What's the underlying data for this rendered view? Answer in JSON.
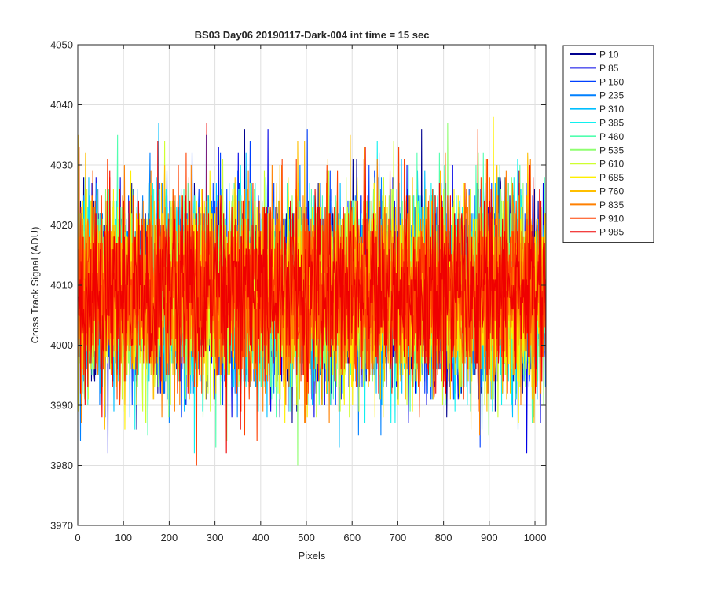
{
  "figure_background": "#ffffff",
  "chart_data": {
    "type": "line",
    "title": "BS03 Day06 20190117-Dark-004 int time = 15 sec",
    "xlabel": "Pixels",
    "ylabel": "Cross Track Signal (ADU)",
    "xlim": [
      0,
      1024
    ],
    "ylim": [
      3970,
      4050
    ],
    "xticks": [
      0,
      100,
      200,
      300,
      400,
      500,
      600,
      700,
      800,
      900,
      1000
    ],
    "yticks": [
      3970,
      3980,
      3990,
      4000,
      4010,
      4020,
      4030,
      4040,
      4050
    ],
    "grid": true,
    "legend_location": "outside-top-right",
    "x": {
      "start": 1,
      "end": 1024,
      "step": 1
    },
    "noise_model": {
      "mean": 4009,
      "std": 8,
      "min": 3977,
      "max": 4050
    },
    "series": [
      {
        "name": "P 10",
        "color": "#00008f",
        "seed": 10
      },
      {
        "name": "P 85",
        "color": "#0000e6",
        "seed": 85
      },
      {
        "name": "P 160",
        "color": "#0040ff",
        "seed": 160
      },
      {
        "name": "P 235",
        "color": "#0080ff",
        "seed": 235
      },
      {
        "name": "P 310",
        "color": "#00bfff",
        "seed": 310
      },
      {
        "name": "P 385",
        "color": "#10f0ef",
        "seed": 385
      },
      {
        "name": "P 460",
        "color": "#50ffaf",
        "seed": 460
      },
      {
        "name": "P 535",
        "color": "#8fff70",
        "seed": 535
      },
      {
        "name": "P 610",
        "color": "#cfff30",
        "seed": 610
      },
      {
        "name": "P 685",
        "color": "#ffef00",
        "seed": 685
      },
      {
        "name": "P 760",
        "color": "#ffbf00",
        "seed": 760
      },
      {
        "name": "P 835",
        "color": "#ff8000",
        "seed": 835
      },
      {
        "name": "P 910",
        "color": "#ff4000",
        "seed": 910
      },
      {
        "name": "P 985",
        "color": "#ef0000",
        "seed": 985
      }
    ]
  }
}
